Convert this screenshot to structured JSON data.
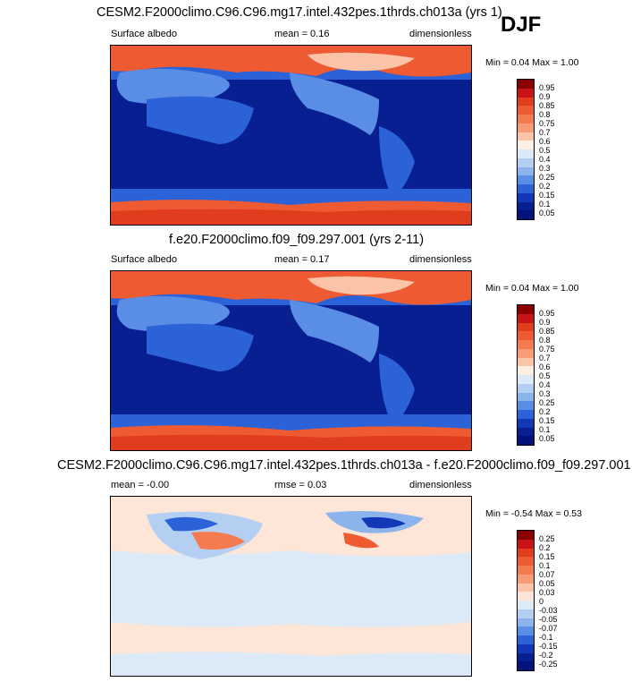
{
  "season": "DJF",
  "panels": [
    {
      "title": "CESM2.F2000climo.C96.C96.mg17.intel.432pes.1thrds.ch013a (yrs 1)",
      "variable": "Surface albedo",
      "stat": "mean =  0.16",
      "units": "dimensionless",
      "minmax": "Min =  0.04 Max =  1.00",
      "colorbar_labels": [
        "0.95",
        "0.9",
        "0.85",
        "0.8",
        "0.75",
        "0.7",
        "0.6",
        "0.5",
        "0.4",
        "0.3",
        "0.25",
        "0.2",
        "0.15",
        "0.1",
        "0.05"
      ]
    },
    {
      "title": "f.e20.F2000climo.f09_f09.297.001 (yrs 2-11)",
      "variable": "Surface albedo",
      "stat": "mean =  0.17",
      "units": "dimensionless",
      "minmax": "Min =  0.04 Max =  1.00",
      "colorbar_labels": [
        "0.95",
        "0.9",
        "0.85",
        "0.8",
        "0.75",
        "0.7",
        "0.6",
        "0.5",
        "0.4",
        "0.3",
        "0.25",
        "0.2",
        "0.15",
        "0.1",
        "0.05"
      ]
    },
    {
      "title": "CESM2.F2000climo.C96.C96.mg17.intel.432pes.1thrds.ch013a - f.e20.F2000climo.f09_f09.297.001",
      "variable": "mean = -0.00",
      "stat": "rmse =  0.03",
      "units": "dimensionless",
      "minmax": "Min = -0.54 Max =  0.53",
      "colorbar_labels": [
        "0.25",
        "0.2",
        "0.15",
        "0.1",
        "0.07",
        "0.05",
        "0.03",
        "0",
        "-0.03",
        "-0.05",
        "-0.07",
        "-0.1",
        "-0.15",
        "-0.2",
        "-0.25"
      ]
    }
  ],
  "colors": {
    "abs_scale": [
      "#8b0000",
      "#c81414",
      "#e03c1e",
      "#ee5a32",
      "#f47a50",
      "#f89c78",
      "#fbc3a8",
      "#fdeee4",
      "#dbe8f8",
      "#b5cff2",
      "#8cb4ec",
      "#5a8ee6",
      "#2c62d8",
      "#1238b8",
      "#081f92",
      "#04117a"
    ],
    "diff_scale": [
      "#8b0000",
      "#c81414",
      "#e03c1e",
      "#ee5a32",
      "#f47a50",
      "#f89c78",
      "#fbc3a8",
      "#fde6d8",
      "#dceaf8",
      "#b5cff2",
      "#8cb4ec",
      "#5a8ee6",
      "#2c62d8",
      "#1238b8",
      "#081f92",
      "#04117a"
    ]
  },
  "chart_data": {
    "type": "heatmap",
    "title": "Surface albedo DJF",
    "maps": [
      {
        "panel": "test",
        "mean": 0.16,
        "min": 0.04,
        "max": 1.0
      },
      {
        "panel": "reference",
        "mean": 0.17,
        "min": 0.04,
        "max": 1.0
      },
      {
        "panel": "difference",
        "mean": -0.0,
        "rmse": 0.03,
        "min": -0.54,
        "max": 0.53
      }
    ],
    "colorbar_abs": [
      0.05,
      0.1,
      0.15,
      0.2,
      0.25,
      0.3,
      0.4,
      0.5,
      0.6,
      0.7,
      0.75,
      0.8,
      0.85,
      0.9,
      0.95
    ],
    "colorbar_diff": [
      -0.25,
      -0.2,
      -0.15,
      -0.1,
      -0.07,
      -0.05,
      -0.03,
      0,
      0.03,
      0.05,
      0.07,
      0.1,
      0.15,
      0.2,
      0.25
    ]
  }
}
